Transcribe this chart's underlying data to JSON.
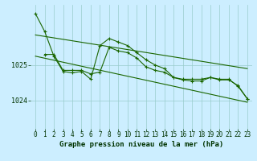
{
  "title": "Graphe pression niveau de la mer (hPa)",
  "bg_color": "#cceeff",
  "grid_color": "#99cccc",
  "line_color": "#1a6600",
  "xlim": [
    -0.5,
    23.5
  ],
  "ylim": [
    1023.2,
    1026.7
  ],
  "yticks": [
    1024,
    1025
  ],
  "xticks": [
    0,
    1,
    2,
    3,
    4,
    5,
    6,
    7,
    8,
    9,
    10,
    11,
    12,
    13,
    14,
    15,
    16,
    17,
    18,
    19,
    20,
    21,
    22,
    23
  ],
  "line1_x": [
    0,
    1,
    2,
    3,
    4,
    5,
    6,
    7,
    8,
    9,
    10,
    11,
    12,
    13,
    14,
    15,
    16,
    17,
    18,
    19,
    20,
    21,
    22,
    23
  ],
  "line1_y": [
    1026.45,
    1025.95,
    1025.25,
    1024.82,
    1024.78,
    1024.82,
    1024.6,
    1025.55,
    1025.75,
    1025.65,
    1025.55,
    1025.35,
    1025.15,
    1025.0,
    1024.9,
    1024.65,
    1024.6,
    1024.6,
    1024.6,
    1024.65,
    1024.6,
    1024.6,
    1024.4,
    1024.05
  ],
  "line2_x": [
    1,
    2,
    3,
    4,
    5,
    6,
    7,
    8,
    9,
    10,
    11,
    12,
    13,
    14,
    15,
    16,
    17,
    18,
    19,
    20,
    21,
    22,
    23
  ],
  "line2_y": [
    1025.3,
    1025.3,
    1024.85,
    1024.85,
    1024.85,
    1024.75,
    1024.8,
    1025.5,
    1025.4,
    1025.35,
    1025.2,
    1024.95,
    1024.85,
    1024.8,
    1024.65,
    1024.58,
    1024.55,
    1024.55,
    1024.65,
    1024.58,
    1024.58,
    1024.42,
    1024.05
  ],
  "trend1_x": [
    0,
    23
  ],
  "trend1_y": [
    1025.85,
    1024.9
  ],
  "trend2_x": [
    0,
    23
  ],
  "trend2_y": [
    1025.25,
    1023.95
  ],
  "title_color": "#003300",
  "title_fontsize": 6.5,
  "tick_fontsize": 5.5,
  "ytick_fontsize": 6.0
}
